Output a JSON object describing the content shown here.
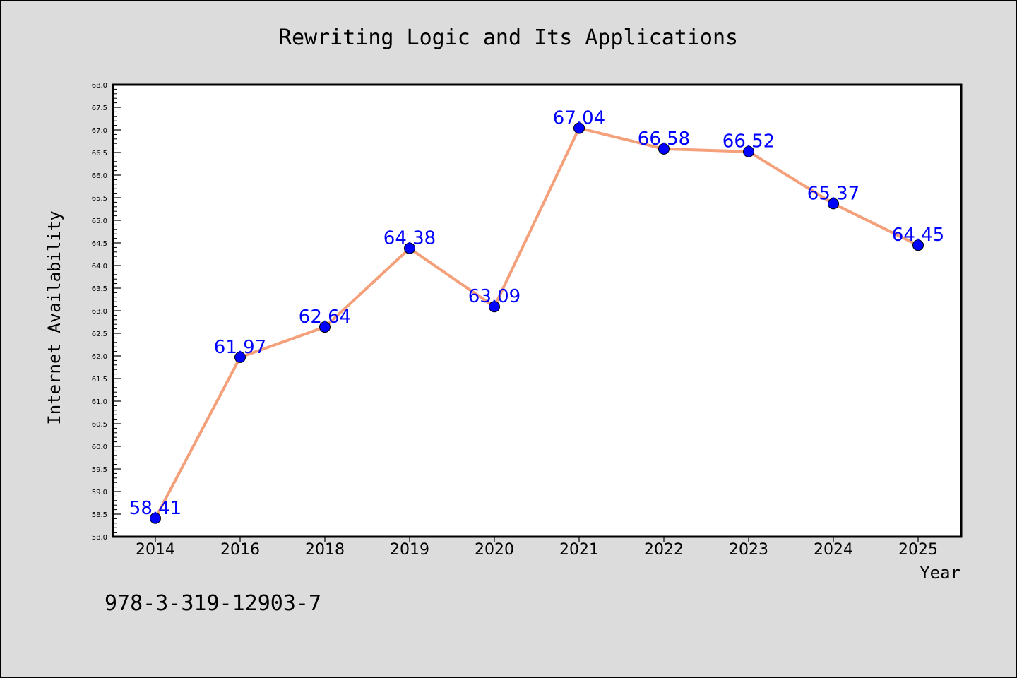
{
  "chart_data": {
    "type": "line",
    "title": "Rewriting Logic and Its Applications",
    "xlabel": "Year",
    "ylabel": "Internet Availability",
    "categories": [
      "2014",
      "2016",
      "2018",
      "2019",
      "2020",
      "2021",
      "2022",
      "2023",
      "2024",
      "2025"
    ],
    "series": [
      {
        "values": [
          58.41,
          61.97,
          62.64,
          64.38,
          63.09,
          67.04,
          66.58,
          66.52,
          65.37,
          64.45
        ],
        "data_labels": [
          "58.41",
          "61.97",
          "62.64",
          "64.38",
          "63.09",
          "67.04",
          "66.58",
          "66.52",
          "65.37",
          "64.45"
        ],
        "line_color": "#f4a07a",
        "marker_color": "#0000ff"
      }
    ],
    "ylim": [
      58.0,
      68.0
    ],
    "yticks": [
      "58.0",
      "58.5",
      "59.0",
      "59.5",
      "60.0",
      "60.5",
      "61.0",
      "61.5",
      "62.0",
      "62.5",
      "63.0",
      "63.5",
      "64.0",
      "64.5",
      "65.0",
      "65.5",
      "66.0",
      "66.5",
      "67.0",
      "67.5",
      "68.0"
    ],
    "grid": false,
    "legend": "none"
  },
  "annotation": "978-3-319-12903-7",
  "colors": {
    "background": "#dcdcdc",
    "plot_background": "#ffffff",
    "line": "#f4a07a",
    "marker": "#0000ff",
    "data_label": "#0000ff"
  }
}
